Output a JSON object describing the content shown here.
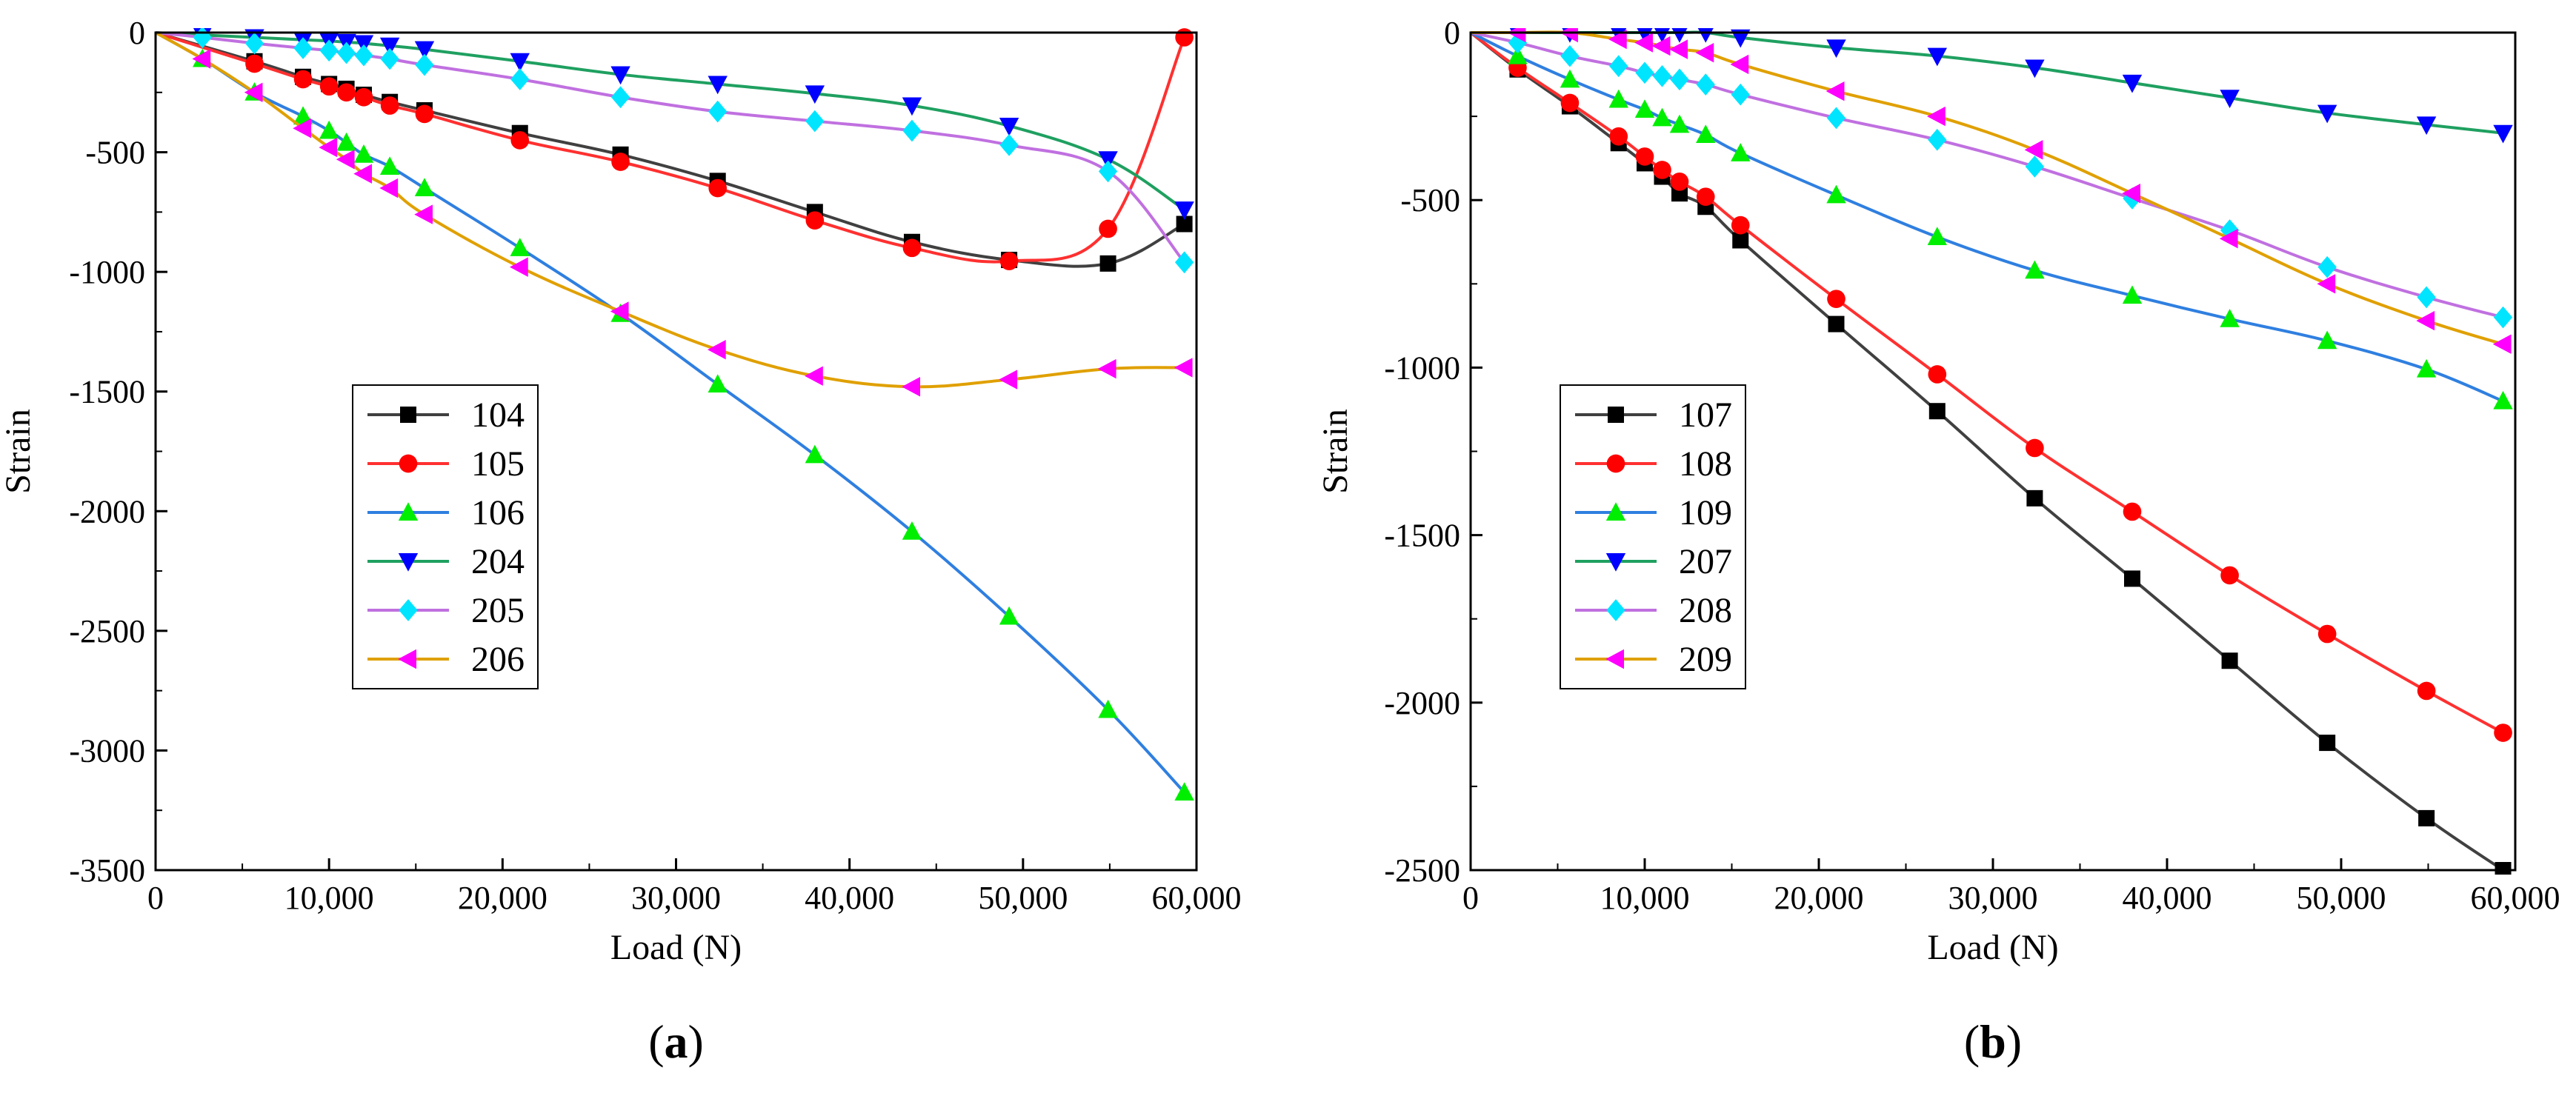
{
  "chart_data": [
    {
      "panel_label": "a",
      "type": "line",
      "xlabel": "Load (N)",
      "ylabel": "Strain",
      "xlim": [
        0,
        60000
      ],
      "ylim": [
        -3500,
        0
      ],
      "xticks": [
        0,
        10000,
        20000,
        30000,
        40000,
        50000,
        60000
      ],
      "xtick_labels": [
        "0",
        "10,000",
        "20,000",
        "30,000",
        "40,000",
        "50,000",
        "60,000"
      ],
      "yticks": [
        0,
        -500,
        -1000,
        -1500,
        -2000,
        -2500,
        -3000,
        -3500
      ],
      "ytick_labels": [
        "0",
        "-500",
        "-1000",
        "-1500",
        "-2000",
        "-2500",
        "-3000",
        "-3500"
      ],
      "legend_placement": "center-left",
      "series": [
        {
          "name": "104",
          "color": "#404040",
          "marker": "square",
          "marker_color": "#000000",
          "x": [
            0,
            5700,
            8500,
            10000,
            11000,
            12000,
            13500,
            15500,
            21000,
            26800,
            32400,
            38000,
            43600,
            49200,
            54900,
            59300
          ],
          "y": [
            0,
            -120,
            -185,
            -215,
            -235,
            -260,
            -290,
            -325,
            -420,
            -510,
            -620,
            -750,
            -875,
            -950,
            -965,
            -800
          ]
        },
        {
          "name": "105",
          "color": "#ff3030",
          "marker": "circle",
          "marker_color": "#ff0000",
          "x": [
            0,
            5700,
            8500,
            10000,
            11000,
            12000,
            13500,
            15500,
            21000,
            26800,
            32400,
            38000,
            43600,
            49200,
            54900,
            59300
          ],
          "y": [
            0,
            -130,
            -195,
            -225,
            -250,
            -270,
            -305,
            -340,
            -450,
            -540,
            -650,
            -785,
            -900,
            -955,
            -820,
            -20
          ]
        },
        {
          "name": "106",
          "color": "#2f7fe0",
          "marker": "triangle-up",
          "marker_color": "#00ee00",
          "x": [
            0,
            2700,
            5700,
            8500,
            10000,
            11000,
            12000,
            13500,
            15500,
            21000,
            26800,
            32400,
            38000,
            43600,
            49200,
            54900,
            59300
          ],
          "y": [
            0,
            -110,
            -250,
            -350,
            -410,
            -460,
            -510,
            -560,
            -650,
            -900,
            -1175,
            -1470,
            -1765,
            -2085,
            -2440,
            -2830,
            -3175
          ]
        },
        {
          "name": "204",
          "color": "#1fa060",
          "marker": "triangle-down",
          "marker_color": "#0000ff",
          "x": [
            0,
            2700,
            5700,
            8500,
            10000,
            11000,
            12000,
            13500,
            15500,
            21000,
            26800,
            32400,
            38000,
            43600,
            49200,
            54900,
            59300
          ],
          "y": [
            0,
            -10,
            -20,
            -30,
            -35,
            -40,
            -45,
            -55,
            -70,
            -120,
            -175,
            -215,
            -255,
            -305,
            -390,
            -530,
            -740
          ]
        },
        {
          "name": "205",
          "color": "#c070e0",
          "marker": "diamond",
          "marker_color": "#00e5ff",
          "x": [
            0,
            2700,
            5700,
            8500,
            10000,
            11000,
            12000,
            13500,
            15500,
            21000,
            26800,
            32400,
            38000,
            43600,
            49200,
            54900,
            59300
          ],
          "y": [
            0,
            -20,
            -45,
            -65,
            -75,
            -85,
            -95,
            -110,
            -135,
            -195,
            -270,
            -330,
            -370,
            -410,
            -470,
            -580,
            -960
          ]
        },
        {
          "name": "206",
          "color": "#e0a000",
          "marker": "triangle-left",
          "marker_color": "#ff00ff",
          "x": [
            0,
            2700,
            5700,
            8500,
            10000,
            11000,
            12000,
            13500,
            15500,
            21000,
            26800,
            32400,
            38000,
            43600,
            49200,
            54900,
            59300
          ],
          "y": [
            0,
            -110,
            -250,
            -400,
            -480,
            -530,
            -590,
            -650,
            -760,
            -980,
            -1165,
            -1325,
            -1435,
            -1480,
            -1450,
            -1405,
            -1400
          ]
        }
      ]
    },
    {
      "panel_label": "b",
      "type": "line",
      "xlabel": "Load (N)",
      "ylabel": "Strain",
      "xlim": [
        0,
        60000
      ],
      "ylim": [
        -2500,
        0
      ],
      "xticks": [
        0,
        10000,
        20000,
        30000,
        40000,
        50000,
        60000
      ],
      "xtick_labels": [
        "0",
        "10,000",
        "20,000",
        "30,000",
        "40,000",
        "50,000",
        "60,000"
      ],
      "yticks": [
        0,
        -500,
        -1000,
        -1500,
        -2000,
        -2500
      ],
      "ytick_labels": [
        "0",
        "-500",
        "-1000",
        "-1500",
        "-2000",
        "-2500"
      ],
      "legend_placement": "center-left",
      "series": [
        {
          "name": "107",
          "color": "#404040",
          "marker": "square",
          "marker_color": "#000000",
          "x": [
            0,
            2700,
            5700,
            8500,
            10000,
            11000,
            12000,
            13500,
            15500,
            21000,
            26800,
            32400,
            38000,
            43600,
            49200,
            54900,
            59300
          ],
          "y": [
            0,
            -110,
            -220,
            -330,
            -390,
            -430,
            -480,
            -520,
            -620,
            -870,
            -1130,
            -1390,
            -1630,
            -1875,
            -2120,
            -2345,
            -2500
          ]
        },
        {
          "name": "108",
          "color": "#ff3030",
          "marker": "circle",
          "marker_color": "#ff0000",
          "x": [
            0,
            2700,
            5700,
            8500,
            10000,
            11000,
            12000,
            13500,
            15500,
            21000,
            26800,
            32400,
            38000,
            43600,
            49200,
            54900,
            59300
          ],
          "y": [
            0,
            -105,
            -210,
            -310,
            -370,
            -410,
            -445,
            -490,
            -575,
            -795,
            -1020,
            -1240,
            -1430,
            -1620,
            -1795,
            -1965,
            -2090
          ]
        },
        {
          "name": "109",
          "color": "#2f7fe0",
          "marker": "triangle-up",
          "marker_color": "#00ee00",
          "x": [
            0,
            2700,
            5700,
            8500,
            10000,
            11000,
            12000,
            13500,
            15500,
            21000,
            26800,
            32400,
            38000,
            43600,
            49200,
            54900,
            59300
          ],
          "y": [
            0,
            -70,
            -140,
            -200,
            -230,
            -255,
            -275,
            -305,
            -360,
            -485,
            -610,
            -710,
            -785,
            -855,
            -920,
            -1005,
            -1100
          ]
        },
        {
          "name": "207",
          "color": "#1fa060",
          "marker": "triangle-down",
          "marker_color": "#0000ff",
          "x": [
            0,
            2700,
            5700,
            8500,
            10000,
            11000,
            12000,
            13500,
            15500,
            21000,
            26800,
            32400,
            38000,
            43600,
            49200,
            54900,
            59300
          ],
          "y": [
            0,
            0,
            0,
            0,
            0,
            0,
            0,
            0,
            -15,
            -45,
            -70,
            -105,
            -150,
            -195,
            -240,
            -275,
            -300
          ]
        },
        {
          "name": "208",
          "color": "#c070e0",
          "marker": "diamond",
          "marker_color": "#00e5ff",
          "x": [
            0,
            2700,
            5700,
            8500,
            10000,
            11000,
            12000,
            13500,
            15500,
            21000,
            26800,
            32400,
            38000,
            43600,
            49200,
            54900,
            59300
          ],
          "y": [
            0,
            -30,
            -70,
            -100,
            -120,
            -130,
            -140,
            -155,
            -185,
            -255,
            -320,
            -400,
            -495,
            -590,
            -700,
            -790,
            -850
          ]
        },
        {
          "name": "209",
          "color": "#e0a000",
          "marker": "triangle-left",
          "marker_color": "#ff00ff",
          "x": [
            0,
            2700,
            5700,
            8500,
            10000,
            11000,
            12000,
            13500,
            15500,
            21000,
            26800,
            32400,
            38000,
            43600,
            49200,
            54900,
            59300
          ],
          "y": [
            0,
            0,
            0,
            -20,
            -30,
            -40,
            -50,
            -60,
            -95,
            -175,
            -250,
            -350,
            -480,
            -615,
            -750,
            -860,
            -930
          ]
        }
      ]
    }
  ]
}
